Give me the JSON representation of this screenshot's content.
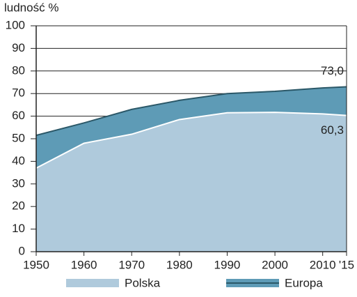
{
  "chart_data": {
    "type": "area",
    "y_label": "ludność %",
    "x": [
      1950,
      1960,
      1970,
      1980,
      1990,
      2000,
      2010,
      2015
    ],
    "series": [
      {
        "name": "Europa",
        "color": "#5e9bb6",
        "line_color": "#2b5868",
        "values": [
          51.5,
          57,
          63,
          67,
          70,
          71,
          72.5,
          73.0
        ],
        "value_labels": [
          null,
          null,
          null,
          null,
          null,
          null,
          null,
          "73,0"
        ]
      },
      {
        "name": "Polska",
        "color": "#afcadc",
        "line_color": "#ffffff",
        "values": [
          37,
          48,
          52,
          58.5,
          61.5,
          61.7,
          61,
          60.3
        ],
        "value_labels": [
          null,
          null,
          null,
          null,
          null,
          null,
          null,
          "60,3"
        ]
      }
    ],
    "xlim": [
      1950,
      2015
    ],
    "xticks": [
      1950,
      1960,
      1970,
      1980,
      1990,
      2000,
      2010,
      {
        "value": 2015,
        "label": "'15"
      }
    ],
    "ylim": [
      0,
      100
    ],
    "yticks": [
      0,
      10,
      20,
      30,
      40,
      50,
      60,
      70,
      80,
      90,
      100
    ],
    "grid": true
  }
}
